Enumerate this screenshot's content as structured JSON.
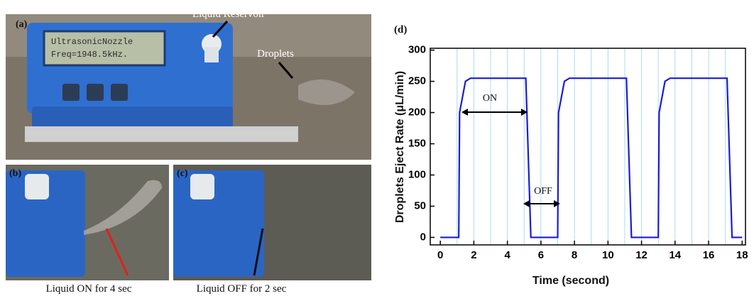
{
  "photos": {
    "panel_a": {
      "label": "(a)",
      "lcd_line1": "UltrasonicNozzle",
      "lcd_line2": "Freq=1948.5kHz.",
      "reservoir": "Liquid Reservoir",
      "droplets": "Droplets"
    },
    "panel_b": {
      "label": "(b)",
      "caption": "Liquid ON for 4 sec"
    },
    "panel_c": {
      "label": "(c)",
      "caption": "Liquid OFF for 2 sec"
    }
  },
  "chart_data": {
    "type": "line",
    "panel_label": "(d)",
    "x_label": "Time (second)",
    "y_label": "Droplets Eject Rate (μL/min)",
    "x": [
      0,
      1.1,
      1.15,
      1.5,
      1.8,
      5.1,
      5.4,
      7.0,
      7.05,
      7.4,
      7.7,
      11.1,
      11.4,
      13.0,
      13.05,
      13.4,
      13.7,
      17.1,
      17.4,
      18
    ],
    "series": [
      {
        "name": "Droplets Eject Rate",
        "color": "#1c1cd6",
        "values": [
          0,
          0,
          200,
          250,
          255,
          255,
          0,
          0,
          200,
          250,
          255,
          255,
          0,
          0,
          200,
          250,
          255,
          255,
          0,
          0
        ]
      }
    ],
    "xlim": [
      -0.6,
      18.2
    ],
    "ylim": [
      -12,
      303
    ],
    "xticks": [
      0,
      2,
      4,
      6,
      8,
      10,
      12,
      14,
      16,
      18
    ],
    "yticks": [
      0,
      50,
      100,
      150,
      200,
      250,
      300
    ],
    "x_grid": [
      1,
      2,
      3,
      4,
      5,
      6,
      7,
      8,
      9,
      10,
      11,
      12,
      13,
      14,
      15,
      16,
      17
    ],
    "grid_color": "#a9dcee",
    "annotations": [
      "ON",
      "OFF"
    ]
  }
}
